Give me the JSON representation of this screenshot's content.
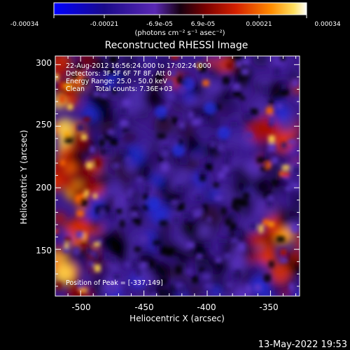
{
  "colorbar": {
    "tick_labels": [
      "-0.00034",
      "-0.00021",
      "-6.9e-05",
      "6.9e-05",
      "0.00021",
      "0.00034"
    ],
    "unit_label": "(photons cm⁻² s⁻¹ asec⁻²)",
    "range": [
      -0.00034,
      0.00034
    ]
  },
  "title": "Reconstructed RHESSI Image",
  "info_lines": [
    "22-Aug-2012 16:56:24.000 to 17:02:24.000",
    "Detectors: 3F 5F 6F 7F 8F, Att 0",
    "Energy Range: 25.0 - 50.0 keV",
    "Clean     Total counts: 7.36E+03"
  ],
  "peak_label": "Position of Peak = [-337,149]",
  "x_axis": {
    "label": "Heliocentric X (arcsec)",
    "range": [
      -520,
      -327
    ],
    "ticks": [
      "-500",
      "-450",
      "-400",
      "-350"
    ],
    "tick_values": [
      -500,
      -450,
      -400,
      -350
    ]
  },
  "y_axis": {
    "label": "Heliocentric Y (arcsec)",
    "range": [
      112,
      307
    ],
    "ticks": [
      "300",
      "250",
      "200",
      "150"
    ],
    "tick_values": [
      300,
      250,
      200,
      150
    ]
  },
  "footer_timestamp": "13-May-2022 19:53"
}
